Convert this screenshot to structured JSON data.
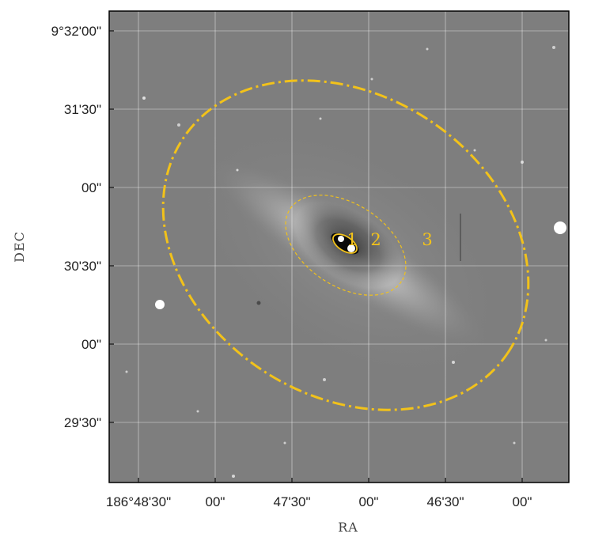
{
  "axes": {
    "xlabel": "RA",
    "ylabel": "DEC",
    "x_ticks": [
      "186°48'30\"",
      "00\"",
      "47'30\"",
      "00\"",
      "46'30\"",
      "00\""
    ],
    "y_ticks": [
      "9°32'00\"",
      "31'30\"",
      "00\"",
      "30'30\"",
      "00\"",
      "29'30\""
    ],
    "grid": true
  },
  "regions": [
    {
      "label": "1",
      "style": "solid"
    },
    {
      "label": "2",
      "style": "dashed"
    },
    {
      "label": "3",
      "style": "dash-dot"
    }
  ],
  "colors": {
    "region": "#f2c21a",
    "grid": "#ffffff",
    "frame": "#000000",
    "background": "#7e7e7e"
  }
}
